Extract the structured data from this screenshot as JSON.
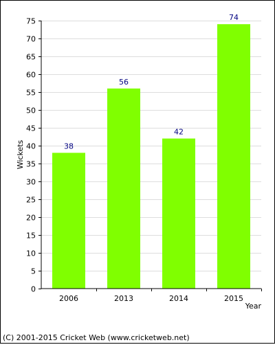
{
  "chart_data": {
    "type": "bar",
    "categories": [
      "2006",
      "2013",
      "2014",
      "2015"
    ],
    "values": [
      38,
      56,
      42,
      74
    ],
    "ylabel": "Wickets",
    "xlabel": "Year",
    "ylim": [
      0,
      75
    ],
    "yticks": [
      0,
      5,
      10,
      15,
      20,
      25,
      30,
      35,
      40,
      45,
      50,
      55,
      60,
      65,
      70,
      75
    ],
    "grid": true,
    "legend": "none",
    "colors": {
      "bar": "#80ff00",
      "value_label": "#000080",
      "grid": "#dddddd",
      "axis": "#000000",
      "border": "#000000"
    }
  },
  "footer": {
    "copyright": "(C) 2001-2015 Cricket Web (www.cricketweb.net)"
  }
}
